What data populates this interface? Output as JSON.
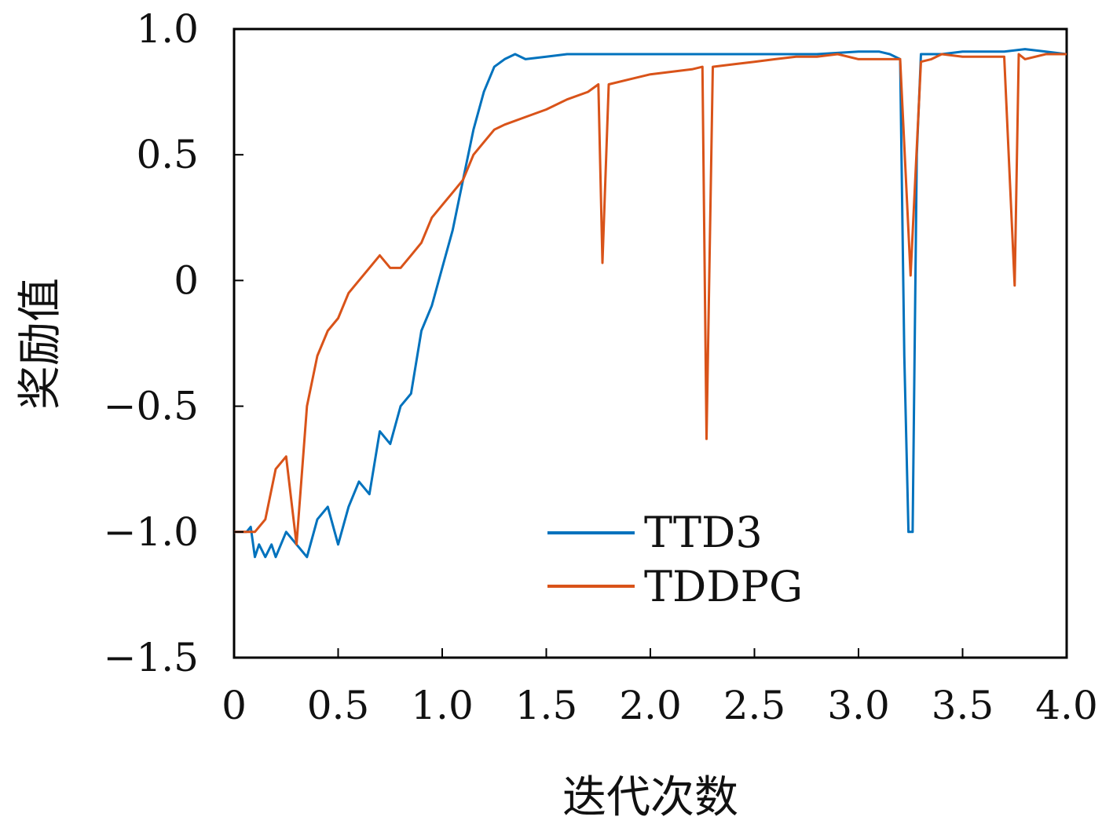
{
  "chart_data": {
    "type": "line",
    "xlabel": "迭代次数",
    "ylabel": "奖励值",
    "xlim": [
      0,
      4.0
    ],
    "ylim": [
      -1.5,
      1.0
    ],
    "xticks": [
      0,
      0.5,
      1.0,
      1.5,
      2.0,
      2.5,
      3.0,
      3.5,
      4.0
    ],
    "xtick_labels": [
      "0",
      "0.5",
      "1.0",
      "1.5",
      "2.0",
      "2.5",
      "3.0",
      "3.5",
      "4.0"
    ],
    "yticks": [
      -1.5,
      -1.0,
      -0.5,
      0,
      0.5,
      1.0
    ],
    "ytick_labels": [
      "−1.5",
      "−1.0",
      "−0.5",
      "0",
      "0.5",
      "1.0"
    ],
    "grid": false,
    "legend_position": "lower-right",
    "series": [
      {
        "name": "TTD3",
        "color": "#0072BD",
        "x": [
          0,
          0.03,
          0.06,
          0.08,
          0.1,
          0.12,
          0.15,
          0.18,
          0.2,
          0.25,
          0.3,
          0.35,
          0.4,
          0.45,
          0.5,
          0.55,
          0.6,
          0.65,
          0.7,
          0.75,
          0.8,
          0.85,
          0.9,
          0.95,
          1.0,
          1.05,
          1.1,
          1.15,
          1.2,
          1.25,
          1.3,
          1.35,
          1.4,
          1.5,
          1.6,
          1.7,
          1.8,
          1.9,
          2.0,
          2.2,
          2.4,
          2.6,
          2.8,
          3.0,
          3.1,
          3.15,
          3.2,
          3.22,
          3.24,
          3.26,
          3.28,
          3.3,
          3.4,
          3.5,
          3.6,
          3.7,
          3.8,
          3.9,
          4.0
        ],
        "y": [
          -1.0,
          -1.0,
          -1.0,
          -0.98,
          -1.1,
          -1.05,
          -1.1,
          -1.05,
          -1.1,
          -1.0,
          -1.05,
          -1.1,
          -0.95,
          -0.9,
          -1.05,
          -0.9,
          -0.8,
          -0.85,
          -0.6,
          -0.65,
          -0.5,
          -0.45,
          -0.2,
          -0.1,
          0.05,
          0.2,
          0.4,
          0.6,
          0.75,
          0.85,
          0.88,
          0.9,
          0.88,
          0.89,
          0.9,
          0.9,
          0.9,
          0.9,
          0.9,
          0.9,
          0.9,
          0.9,
          0.9,
          0.91,
          0.91,
          0.9,
          0.88,
          -0.3,
          -1.0,
          -1.0,
          0.5,
          0.9,
          0.9,
          0.91,
          0.91,
          0.91,
          0.92,
          0.91,
          0.9
        ]
      },
      {
        "name": "TDDPG",
        "color": "#D95319",
        "x": [
          0,
          0.05,
          0.1,
          0.15,
          0.2,
          0.25,
          0.3,
          0.35,
          0.4,
          0.45,
          0.5,
          0.55,
          0.6,
          0.65,
          0.7,
          0.75,
          0.8,
          0.85,
          0.9,
          0.95,
          1.0,
          1.05,
          1.1,
          1.15,
          1.2,
          1.25,
          1.3,
          1.4,
          1.5,
          1.6,
          1.7,
          1.75,
          1.77,
          1.8,
          1.9,
          2.0,
          2.1,
          2.2,
          2.25,
          2.27,
          2.3,
          2.4,
          2.5,
          2.6,
          2.7,
          2.8,
          2.9,
          3.0,
          3.1,
          3.2,
          3.25,
          3.3,
          3.35,
          3.4,
          3.5,
          3.6,
          3.7,
          3.75,
          3.77,
          3.8,
          3.9,
          4.0
        ],
        "y": [
          -1.0,
          -1.0,
          -1.0,
          -0.95,
          -0.75,
          -0.7,
          -1.05,
          -0.5,
          -0.3,
          -0.2,
          -0.15,
          -0.05,
          0.0,
          0.05,
          0.1,
          0.05,
          0.05,
          0.1,
          0.15,
          0.25,
          0.3,
          0.35,
          0.4,
          0.5,
          0.55,
          0.6,
          0.62,
          0.65,
          0.68,
          0.72,
          0.75,
          0.78,
          0.07,
          0.78,
          0.8,
          0.82,
          0.83,
          0.84,
          0.85,
          -0.63,
          0.85,
          0.86,
          0.87,
          0.88,
          0.89,
          0.89,
          0.9,
          0.88,
          0.88,
          0.88,
          0.02,
          0.87,
          0.88,
          0.9,
          0.89,
          0.89,
          0.89,
          -0.02,
          0.9,
          0.88,
          0.9,
          0.9
        ]
      }
    ]
  }
}
